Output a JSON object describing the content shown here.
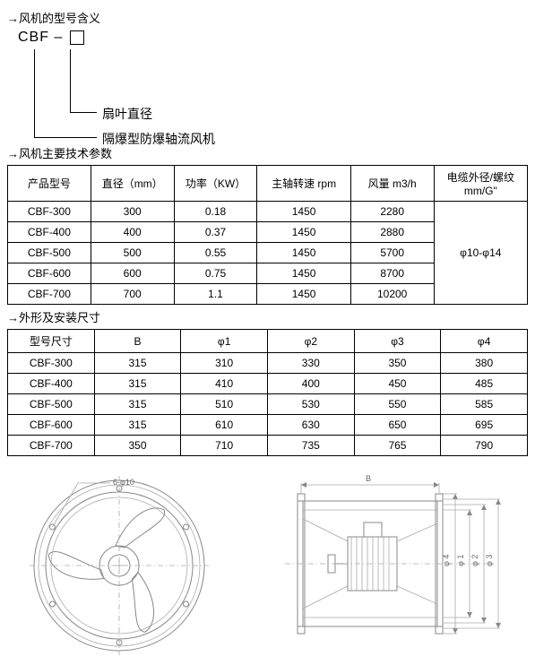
{
  "section_model_meaning": "→风机的型号含义",
  "model_prefix": "CBF –",
  "model_label_diameter": "扇叶直径",
  "model_label_type": "隔爆型防爆轴流风机",
  "section_specs": "→风机主要技术参数",
  "specs_table": {
    "headers": [
      "产品型号",
      "直径（mm）",
      "功率（KW）",
      "主轴转速 rpm",
      "风量 m3/h",
      "电缆外径/螺纹\nmm/G\""
    ],
    "rows": [
      [
        "CBF-300",
        "300",
        "0.18",
        "1450",
        "2280"
      ],
      [
        "CBF-400",
        "400",
        "0.37",
        "1450",
        "2880"
      ],
      [
        "CBF-500",
        "500",
        "0.55",
        "1450",
        "5700"
      ],
      [
        "CBF-600",
        "600",
        "0.75",
        "1450",
        "8700"
      ],
      [
        "CBF-700",
        "700",
        "1.1",
        "1450",
        "10200"
      ]
    ],
    "cable_merged": "φ10-φ14"
  },
  "section_dims": "→外形及安装尺寸",
  "dims_table": {
    "headers": [
      "型号尺寸",
      "B",
      "φ1",
      "φ2",
      "φ3",
      "φ4"
    ],
    "rows": [
      [
        "CBF-300",
        "315",
        "310",
        "330",
        "350",
        "380"
      ],
      [
        "CBF-400",
        "315",
        "410",
        "400",
        "450",
        "485"
      ],
      [
        "CBF-500",
        "315",
        "510",
        "530",
        "550",
        "585"
      ],
      [
        "CBF-600",
        "315",
        "610",
        "630",
        "650",
        "695"
      ],
      [
        "CBF-700",
        "350",
        "710",
        "735",
        "765",
        "790"
      ]
    ]
  },
  "drawing_labels": {
    "bolt": "6-φ10",
    "B": "B",
    "phi1": "φ 1",
    "phi2": "φ 2",
    "phi3": "φ 3",
    "phi4": "φ 4"
  },
  "colors": {
    "line": "#888888",
    "line_light": "#aaaaaa",
    "text_dim": "#666666",
    "border": "#000000",
    "bg": "#ffffff"
  }
}
